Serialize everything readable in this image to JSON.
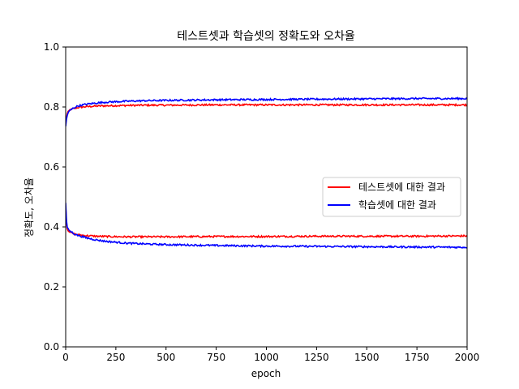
{
  "chart_data": {
    "type": "line",
    "title": "테스트셋과 학습셋의 정확도와 오차율",
    "xlabel": "epoch",
    "ylabel": "정확도, 오차율",
    "xlim": [
      0,
      2000
    ],
    "ylim": [
      0.0,
      1.0
    ],
    "x_ticks": [
      0,
      250,
      500,
      750,
      1000,
      1250,
      1500,
      1750,
      2000
    ],
    "x_tick_labels": [
      "0",
      "250",
      "500",
      "750",
      "1000",
      "1250",
      "1500",
      "1750",
      "2000"
    ],
    "y_ticks": [
      0.0,
      0.2,
      0.4,
      0.6,
      0.8,
      1.0
    ],
    "y_tick_labels": [
      "0.0",
      "0.2",
      "0.4",
      "0.6",
      "0.8",
      "1.0"
    ],
    "grid": false,
    "legend_position": "center-right",
    "legend": [
      "테스트셋에 대한 결과",
      "학습셋에 대한 결과"
    ],
    "series": [
      {
        "name": "테스트셋에 대한 결과",
        "color": "#ff0000",
        "x": [
          0,
          5,
          10,
          20,
          40,
          60,
          100,
          150,
          200,
          300,
          400,
          500,
          750,
          1000,
          1250,
          1500,
          1750,
          2000
        ],
        "accuracy": [
          0.745,
          0.77,
          0.782,
          0.79,
          0.795,
          0.798,
          0.801,
          0.803,
          0.804,
          0.805,
          0.806,
          0.806,
          0.807,
          0.807,
          0.807,
          0.807,
          0.807,
          0.807
        ],
        "loss": [
          0.47,
          0.4,
          0.39,
          0.383,
          0.377,
          0.374,
          0.371,
          0.369,
          0.368,
          0.367,
          0.367,
          0.367,
          0.368,
          0.368,
          0.369,
          0.369,
          0.369,
          0.37
        ]
      },
      {
        "name": "학습셋에 대한 결과",
        "color": "#0000ff",
        "x": [
          0,
          5,
          10,
          20,
          40,
          60,
          100,
          150,
          200,
          300,
          400,
          500,
          750,
          1000,
          1250,
          1500,
          1750,
          2000
        ],
        "accuracy": [
          0.735,
          0.765,
          0.778,
          0.788,
          0.797,
          0.803,
          0.809,
          0.813,
          0.816,
          0.819,
          0.821,
          0.822,
          0.824,
          0.825,
          0.826,
          0.827,
          0.828,
          0.828
        ],
        "loss": [
          0.48,
          0.405,
          0.395,
          0.387,
          0.378,
          0.372,
          0.364,
          0.357,
          0.352,
          0.346,
          0.343,
          0.341,
          0.338,
          0.336,
          0.335,
          0.334,
          0.333,
          0.332
        ]
      }
    ]
  }
}
